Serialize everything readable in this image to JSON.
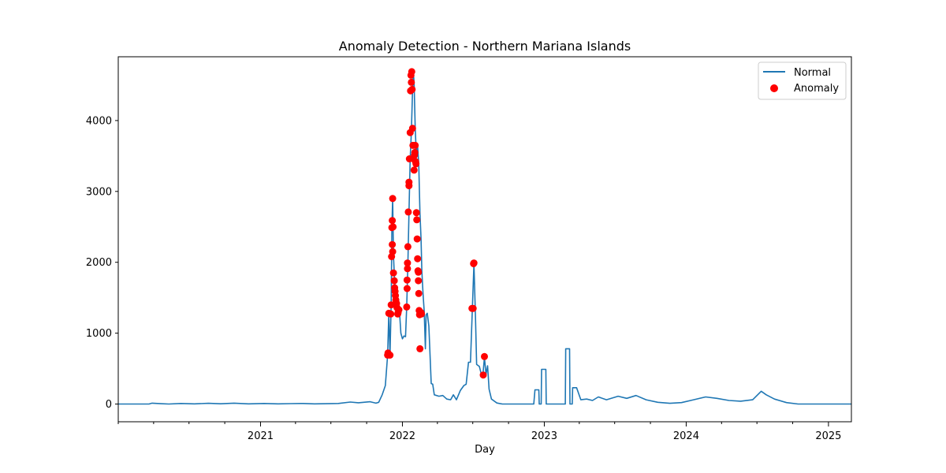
{
  "chart_data": {
    "type": "line",
    "title": "Anomaly Detection - Northern Mariana Islands",
    "xlabel": "Day",
    "ylabel": "",
    "xlim": [
      "2020-01-01",
      "2025-03-01"
    ],
    "ylim": [
      -250,
      4900
    ],
    "x_ticks": [
      "2021",
      "2022",
      "2023",
      "2024",
      "2025"
    ],
    "y_ticks": [
      0,
      1000,
      2000,
      3000,
      4000
    ],
    "grid": false,
    "legend_position": "upper right",
    "series": [
      {
        "name": "Normal",
        "kind": "line",
        "color": "#1f77b4",
        "points": [
          [
            "2020-01-01",
            0
          ],
          [
            "2020-03-20",
            0
          ],
          [
            "2020-03-28",
            12
          ],
          [
            "2020-04-20",
            5
          ],
          [
            "2020-05-10",
            0
          ],
          [
            "2020-06-10",
            8
          ],
          [
            "2020-07-15",
            3
          ],
          [
            "2020-08-20",
            10
          ],
          [
            "2020-09-20",
            4
          ],
          [
            "2020-10-25",
            12
          ],
          [
            "2020-12-01",
            3
          ],
          [
            "2021-01-10",
            8
          ],
          [
            "2021-02-15",
            2
          ],
          [
            "2021-03-20",
            6
          ],
          [
            "2021-04-20",
            8
          ],
          [
            "2021-05-20",
            2
          ],
          [
            "2021-06-20",
            5
          ],
          [
            "2021-07-20",
            8
          ],
          [
            "2021-08-20",
            28
          ],
          [
            "2021-09-10",
            18
          ],
          [
            "2021-10-10",
            32
          ],
          [
            "2021-10-25",
            12
          ],
          [
            "2021-11-01",
            25
          ],
          [
            "2021-11-10",
            130
          ],
          [
            "2021-11-18",
            260
          ],
          [
            "2021-11-24",
            690
          ],
          [
            "2021-11-27",
            1280
          ],
          [
            "2021-11-30",
            690
          ],
          [
            "2021-12-03",
            1400
          ],
          [
            "2021-12-05",
            2490
          ],
          [
            "2021-12-07",
            2900
          ],
          [
            "2021-12-09",
            2100
          ],
          [
            "2021-12-11",
            1850
          ],
          [
            "2021-12-14",
            1600
          ],
          [
            "2021-12-17",
            1480
          ],
          [
            "2021-12-20",
            1260
          ],
          [
            "2021-12-24",
            1350
          ],
          [
            "2021-12-28",
            1000
          ],
          [
            "2022-01-01",
            920
          ],
          [
            "2022-01-05",
            960
          ],
          [
            "2022-01-09",
            950
          ],
          [
            "2022-01-12",
            1370
          ],
          [
            "2022-01-15",
            1980
          ],
          [
            "2022-01-18",
            2700
          ],
          [
            "2022-01-21",
            3460
          ],
          [
            "2022-01-24",
            3830
          ],
          [
            "2022-01-27",
            4420
          ],
          [
            "2022-01-29",
            4690
          ],
          [
            "2022-01-31",
            4530
          ],
          [
            "2022-02-03",
            3890
          ],
          [
            "2022-02-06",
            3500
          ],
          [
            "2022-02-09",
            3650
          ],
          [
            "2022-02-12",
            3380
          ],
          [
            "2022-02-15",
            2700
          ],
          [
            "2022-02-18",
            2330
          ],
          [
            "2022-02-20",
            1880
          ],
          [
            "2022-02-23",
            1560
          ],
          [
            "2022-02-26",
            1310
          ],
          [
            "2022-03-01",
            780
          ],
          [
            "2022-03-03",
            1260
          ],
          [
            "2022-03-06",
            1280
          ],
          [
            "2022-03-10",
            1100
          ],
          [
            "2022-03-16",
            290
          ],
          [
            "2022-03-20",
            280
          ],
          [
            "2022-03-24",
            130
          ],
          [
            "2022-04-05",
            110
          ],
          [
            "2022-04-15",
            120
          ],
          [
            "2022-04-25",
            70
          ],
          [
            "2022-05-05",
            60
          ],
          [
            "2022-05-12",
            130
          ],
          [
            "2022-05-20",
            60
          ],
          [
            "2022-05-30",
            190
          ],
          [
            "2022-06-08",
            260
          ],
          [
            "2022-06-14",
            280
          ],
          [
            "2022-06-20",
            590
          ],
          [
            "2022-06-25",
            590
          ],
          [
            "2022-06-30",
            1350
          ],
          [
            "2022-07-04",
            1980
          ],
          [
            "2022-07-08",
            1200
          ],
          [
            "2022-07-11",
            560
          ],
          [
            "2022-07-18",
            530
          ],
          [
            "2022-07-23",
            420
          ],
          [
            "2022-07-27",
            400
          ],
          [
            "2022-07-31",
            660
          ],
          [
            "2022-08-04",
            420
          ],
          [
            "2022-08-08",
            540
          ],
          [
            "2022-08-12",
            210
          ],
          [
            "2022-08-18",
            70
          ],
          [
            "2022-09-01",
            15
          ],
          [
            "2022-09-15",
            0
          ],
          [
            "2022-12-05",
            0
          ],
          [
            "2022-12-08",
            200
          ],
          [
            "2022-12-18",
            200
          ],
          [
            "2022-12-19",
            0
          ],
          [
            "2022-12-24",
            0
          ],
          [
            "2022-12-25",
            490
          ],
          [
            "2023-01-05",
            490
          ],
          [
            "2023-01-06",
            0
          ],
          [
            "2023-02-24",
            0
          ],
          [
            "2023-02-25",
            780
          ],
          [
            "2023-03-07",
            780
          ],
          [
            "2023-03-08",
            0
          ],
          [
            "2023-03-14",
            0
          ],
          [
            "2023-03-15",
            230
          ],
          [
            "2023-03-25",
            230
          ],
          [
            "2023-04-05",
            60
          ],
          [
            "2023-04-20",
            70
          ],
          [
            "2023-05-05",
            50
          ],
          [
            "2023-05-20",
            100
          ],
          [
            "2023-06-10",
            60
          ],
          [
            "2023-07-10",
            110
          ],
          [
            "2023-08-01",
            80
          ],
          [
            "2023-08-25",
            120
          ],
          [
            "2023-09-20",
            60
          ],
          [
            "2023-10-20",
            25
          ],
          [
            "2023-11-20",
            10
          ],
          [
            "2023-12-20",
            20
          ],
          [
            "2024-01-20",
            60
          ],
          [
            "2024-02-20",
            100
          ],
          [
            "2024-03-20",
            80
          ],
          [
            "2024-04-20",
            50
          ],
          [
            "2024-05-20",
            40
          ],
          [
            "2024-06-20",
            60
          ],
          [
            "2024-07-12",
            180
          ],
          [
            "2024-07-25",
            130
          ],
          [
            "2024-08-15",
            70
          ],
          [
            "2024-09-15",
            20
          ],
          [
            "2024-10-15",
            0
          ],
          [
            "2025-03-01",
            0
          ]
        ]
      },
      {
        "name": "Anomaly",
        "kind": "scatter",
        "color": "#ff0000",
        "points": [
          [
            "2021-11-24",
            690
          ],
          [
            "2021-11-25",
            720
          ],
          [
            "2021-11-27",
            1280
          ],
          [
            "2021-11-30",
            690
          ],
          [
            "2021-12-02",
            1270
          ],
          [
            "2021-12-03",
            1400
          ],
          [
            "2021-12-04",
            2080
          ],
          [
            "2021-12-05",
            2490
          ],
          [
            "2021-12-06",
            2590
          ],
          [
            "2021-12-06",
            2250
          ],
          [
            "2021-12-07",
            2900
          ],
          [
            "2021-12-07",
            2150
          ],
          [
            "2021-12-08",
            2500
          ],
          [
            "2021-12-09",
            1850
          ],
          [
            "2021-12-11",
            1740
          ],
          [
            "2021-12-12",
            1640
          ],
          [
            "2021-12-13",
            1590
          ],
          [
            "2021-12-14",
            1530
          ],
          [
            "2021-12-15",
            1470
          ],
          [
            "2021-12-17",
            1420
          ],
          [
            "2021-12-18",
            1360
          ],
          [
            "2021-12-20",
            1270
          ],
          [
            "2021-12-21",
            1290
          ],
          [
            "2021-12-23",
            1330
          ],
          [
            "2022-01-12",
            1370
          ],
          [
            "2022-01-13",
            1630
          ],
          [
            "2022-01-13",
            1750
          ],
          [
            "2022-01-14",
            1910
          ],
          [
            "2022-01-14",
            1990
          ],
          [
            "2022-01-15",
            2220
          ],
          [
            "2022-01-16",
            2710
          ],
          [
            "2022-01-18",
            3080
          ],
          [
            "2022-01-18",
            3130
          ],
          [
            "2022-01-19",
            3460
          ],
          [
            "2022-01-21",
            3830
          ],
          [
            "2022-01-22",
            4420
          ],
          [
            "2022-01-23",
            4640
          ],
          [
            "2022-01-25",
            4690
          ],
          [
            "2022-01-24",
            4540
          ],
          [
            "2022-01-26",
            4440
          ],
          [
            "2022-01-27",
            3890
          ],
          [
            "2022-01-28",
            3650
          ],
          [
            "2022-01-29",
            3460
          ],
          [
            "2022-01-31",
            3300
          ],
          [
            "2022-02-01",
            3510
          ],
          [
            "2022-02-02",
            3550
          ],
          [
            "2022-02-03",
            3650
          ],
          [
            "2022-02-04",
            3420
          ],
          [
            "2022-02-05",
            3390
          ],
          [
            "2022-02-06",
            2700
          ],
          [
            "2022-02-07",
            2600
          ],
          [
            "2022-02-08",
            2330
          ],
          [
            "2022-02-09",
            2050
          ],
          [
            "2022-02-10",
            1880
          ],
          [
            "2022-02-11",
            1860
          ],
          [
            "2022-02-11",
            1740
          ],
          [
            "2022-02-12",
            1560
          ],
          [
            "2022-02-13",
            1320
          ],
          [
            "2022-02-14",
            1260
          ],
          [
            "2022-02-15",
            780
          ],
          [
            "2022-02-18",
            1290
          ],
          [
            "2022-02-19",
            1270
          ],
          [
            "2022-06-29",
            1350
          ],
          [
            "2022-07-02",
            1350
          ],
          [
            "2022-07-03",
            1980
          ],
          [
            "2022-07-04",
            1990
          ],
          [
            "2022-07-28",
            410
          ],
          [
            "2022-07-31",
            670
          ]
        ]
      }
    ]
  }
}
